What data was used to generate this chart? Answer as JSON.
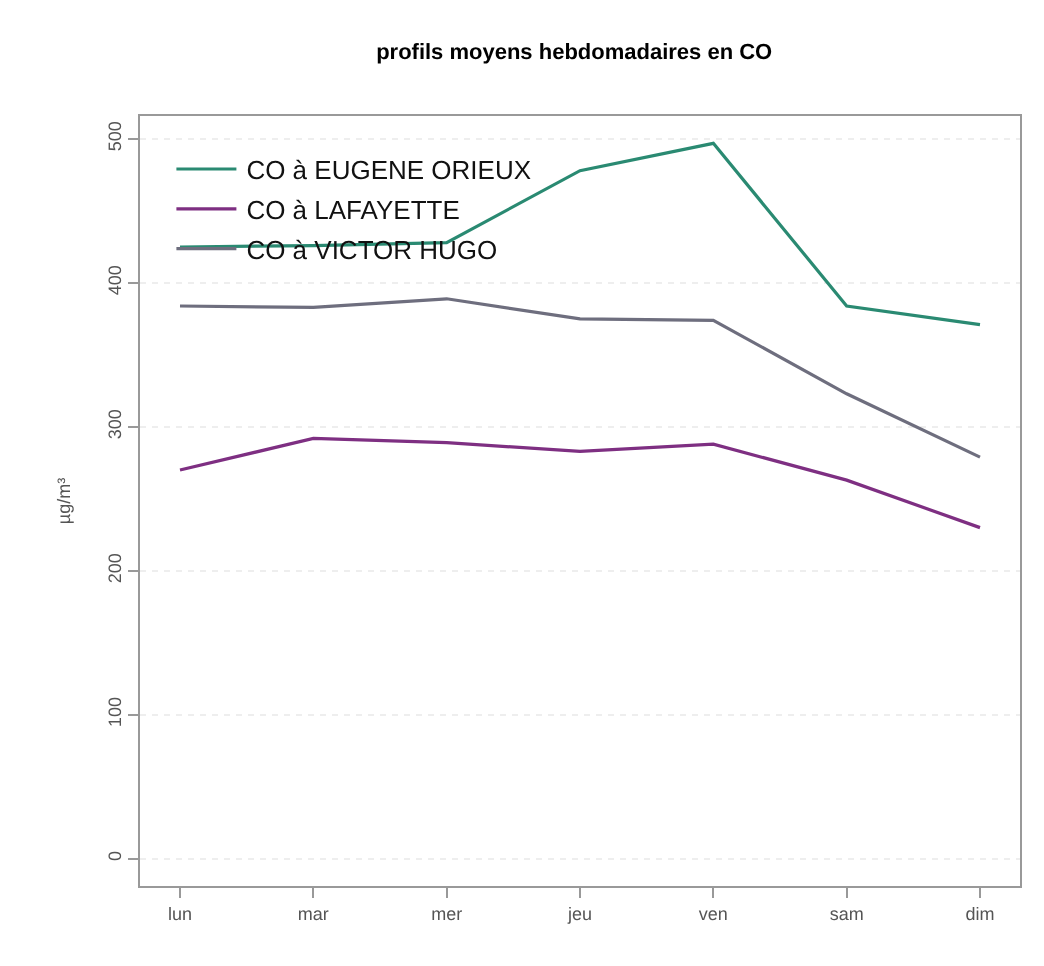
{
  "chart_data": {
    "type": "line",
    "title": "profils moyens hebdomadaires en CO",
    "ylabel": "µg/m³",
    "categories": [
      "lun",
      "mar",
      "mer",
      "jeu",
      "ven",
      "sam",
      "dim"
    ],
    "series": [
      {
        "name": "CO à EUGENE ORIEUX",
        "color": "#2a8a72",
        "values": [
          425,
          426,
          428,
          478,
          497,
          384,
          371
        ]
      },
      {
        "name": "CO à LAFAYETTE",
        "color": "#7e2f82",
        "values": [
          270,
          292,
          289,
          283,
          288,
          263,
          230
        ]
      },
      {
        "name": "CO à VICTOR HUGO",
        "color": "#6e6e7e",
        "values": [
          384,
          383,
          389,
          375,
          374,
          323,
          279
        ]
      }
    ],
    "ylim": [
      -19,
      516
    ],
    "yticks": [
      0,
      100,
      200,
      300,
      400,
      500
    ],
    "grid": "y",
    "legend": "top left",
    "marker": "none",
    "line_style": "solid"
  }
}
